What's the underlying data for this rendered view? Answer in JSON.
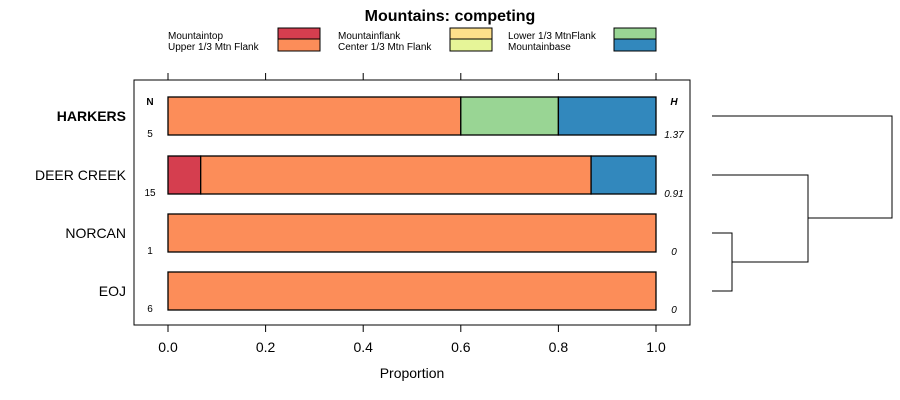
{
  "chart_data": {
    "type": "bar",
    "stacked": true,
    "orientation": "horizontal",
    "title": "Mountains: competing",
    "xlabel": "Proportion",
    "ylabel": "",
    "xlim": [
      0,
      1
    ],
    "x_ticks": [
      "0.0",
      "0.2",
      "0.4",
      "0.6",
      "0.8",
      "1.0"
    ],
    "x_tick_values": [
      0,
      0.2,
      0.4,
      0.6,
      0.8,
      1.0
    ],
    "n_header": "N",
    "h_header": "H",
    "legend": [
      {
        "name": "Mountaintop",
        "color": "#d53e4f"
      },
      {
        "name": "Upper 1/3 Mtn Flank",
        "color": "#fc8d59"
      },
      {
        "name": "Mountainflank",
        "color": "#fee08b"
      },
      {
        "name": "Center 1/3 Mtn Flank",
        "color": "#e6f598"
      },
      {
        "name": "Lower 1/3 MtnFlank",
        "color": "#99d594"
      },
      {
        "name": "Mountainbase",
        "color": "#3288bd"
      }
    ],
    "categories": [
      "HARKERS",
      "DEER CREEK",
      "NORCAN",
      "EOJ"
    ],
    "highlighted_category": "HARKERS",
    "series": [
      {
        "name": "Mountaintop",
        "values": [
          0,
          0.067,
          0,
          0
        ]
      },
      {
        "name": "Upper 1/3 Mtn Flank",
        "values": [
          0.6,
          0.8,
          1.0,
          1.0
        ]
      },
      {
        "name": "Mountainflank",
        "values": [
          0,
          0,
          0,
          0
        ]
      },
      {
        "name": "Center 1/3 Mtn Flank",
        "values": [
          0,
          0,
          0,
          0
        ]
      },
      {
        "name": "Lower 1/3 MtnFlank",
        "values": [
          0.2,
          0,
          0,
          0
        ]
      },
      {
        "name": "Mountainbase",
        "values": [
          0.2,
          0.133,
          0,
          0
        ]
      }
    ],
    "n": [
      "5",
      "15",
      "1",
      "6"
    ],
    "h": [
      "1.37",
      "0.91",
      "0",
      "0"
    ]
  }
}
